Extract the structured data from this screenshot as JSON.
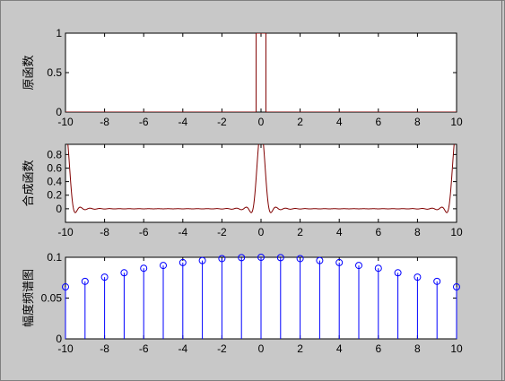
{
  "figure": {
    "background": "#c8c8c8",
    "window_border": "#808080"
  },
  "chart_data": [
    {
      "type": "line",
      "ylabel": "原函数",
      "xlim": [
        -10,
        10
      ],
      "ylim": [
        0,
        1
      ],
      "xticks": [
        -10,
        -8,
        -6,
        -4,
        -2,
        0,
        2,
        4,
        6,
        8,
        10
      ],
      "xtick_labels": [
        "-10",
        "-8",
        "-6",
        "-4",
        "-2",
        "0",
        "2",
        "4",
        "6",
        "8",
        "10"
      ],
      "yticks": [
        0,
        0.5,
        1
      ],
      "ytick_labels": [
        "0",
        "0.5",
        "1"
      ],
      "color": "#800000",
      "series": [
        {
          "x": [
            -10,
            -0.25,
            -0.25,
            0.25,
            0.25,
            10
          ],
          "y": [
            0,
            0,
            1,
            1,
            0,
            0
          ]
        }
      ]
    },
    {
      "type": "line",
      "ylabel": "合成函数",
      "xlim": [
        -10,
        10
      ],
      "ylim": [
        -0.2,
        0.95
      ],
      "xticks": [
        -10,
        -8,
        -6,
        -4,
        -2,
        0,
        2,
        4,
        6,
        8,
        10
      ],
      "xtick_labels": [
        "-10",
        "-8",
        "-6",
        "-4",
        "-2",
        "0",
        "2",
        "4",
        "6",
        "8",
        "10"
      ],
      "yticks": [
        0,
        0.2,
        0.4,
        0.6,
        0.8
      ],
      "ytick_labels": [
        "0",
        "0.2",
        "0.4",
        "0.6",
        "0.8"
      ],
      "color": "#800000",
      "period": 10,
      "pulse_half_width": 0.25,
      "harmonics": 20
    },
    {
      "type": "stem",
      "ylabel": "幅度频谱图",
      "xlim": [
        -10,
        10
      ],
      "ylim": [
        0,
        0.1
      ],
      "xticks": [
        -10,
        -8,
        -6,
        -4,
        -2,
        0,
        2,
        4,
        6,
        8,
        10
      ],
      "xtick_labels": [
        "-10",
        "-8",
        "-6",
        "-4",
        "-2",
        "0",
        "2",
        "4",
        "6",
        "8",
        "10"
      ],
      "yticks": [
        0,
        0.05,
        0.1
      ],
      "ytick_labels": [
        "0",
        "0.05",
        "0.1"
      ],
      "color": "#0000ff",
      "x": [
        -10,
        -9,
        -8,
        -7,
        -6,
        -5,
        -4,
        -3,
        -2,
        -1,
        0,
        1,
        2,
        3,
        4,
        5,
        6,
        7,
        8,
        9,
        10
      ],
      "y": [
        0.0637,
        0.0705,
        0.0757,
        0.081,
        0.0866,
        0.09,
        0.0935,
        0.096,
        0.0984,
        0.0996,
        0.1,
        0.0996,
        0.0984,
        0.096,
        0.0935,
        0.09,
        0.0866,
        0.081,
        0.0757,
        0.0705,
        0.0637
      ]
    }
  ]
}
